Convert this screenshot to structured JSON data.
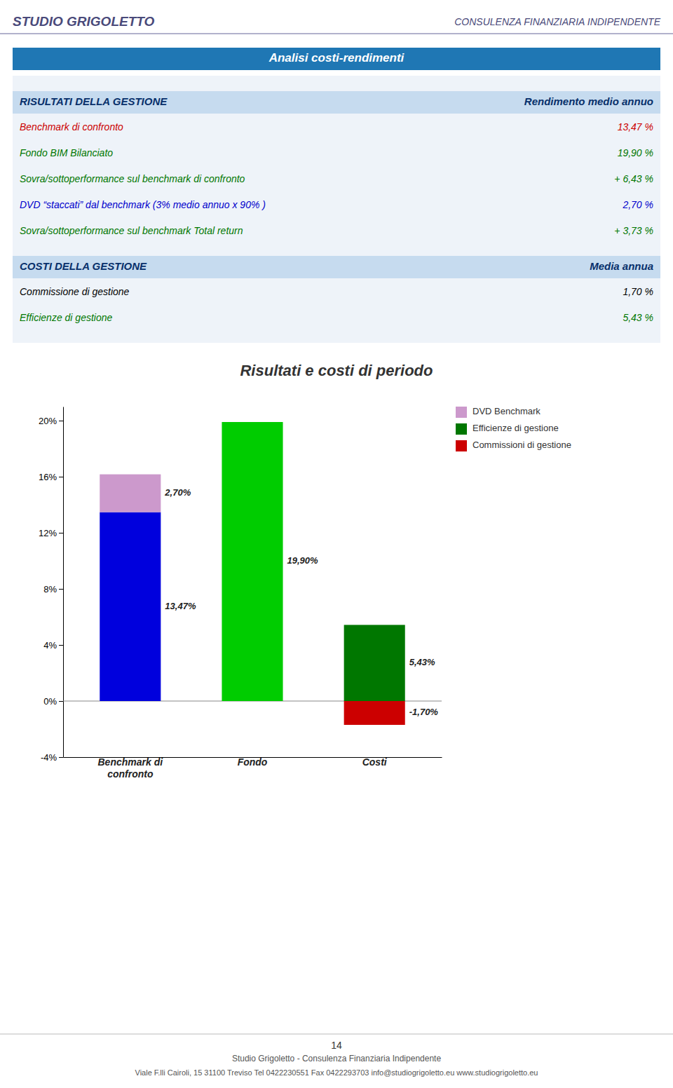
{
  "header": {
    "left": "STUDIO GRIGOLETTO",
    "right": "CONSULENZA FINANZIARIA INDIPENDENTE"
  },
  "banner": "Analisi costi-rendimenti",
  "tables": [
    {
      "header_left": "RISULTATI DELLA GESTIONE",
      "header_right": "Rendimento medio annuo",
      "rows": [
        {
          "label": "Benchmark di confronto",
          "value": "13,47 %",
          "color": "#cc0000"
        },
        {
          "label": "Fondo BIM Bilanciato",
          "value": "19,90 %",
          "color": "#007700"
        },
        {
          "label": "Sovra/sottoperformance sul benchmark di confronto",
          "value": "+ 6,43 %",
          "color": "#007700"
        },
        {
          "label": "DVD “staccati” dal benchmark (3%  medio annuo x 90% )",
          "value": "2,70 %",
          "color": "#0000cc"
        },
        {
          "label": "Sovra/sottoperformance sul benchmark Total return",
          "value": "+ 3,73 %",
          "color": "#007700"
        }
      ]
    },
    {
      "header_left": "COSTI DELLA GESTIONE",
      "header_right": "Media annua",
      "rows": [
        {
          "label": "Commissione di gestione",
          "value": "1,70 %",
          "color": "#000000"
        },
        {
          "label": "Efficienze di gestione",
          "value": "5,43 %",
          "color": "#007700"
        }
      ]
    }
  ],
  "chart_data": {
    "type": "bar",
    "title": "Risultati e costi di periodo",
    "categories": [
      "Benchmark di\nconfronto",
      "Fondo",
      "Costi"
    ],
    "stacked": true,
    "data_labels": true,
    "grid": false,
    "legend": "upper right",
    "series": [
      {
        "color": "#0000dd",
        "values": [
          13.47,
          null,
          null
        ],
        "value_labels": [
          "13,47%",
          null,
          null
        ]
      },
      {
        "name": "DVD Benchmark",
        "color": "#cc99cc",
        "values": [
          2.7,
          null,
          null
        ],
        "value_labels": [
          "2,70%",
          null,
          null
        ]
      },
      {
        "color": "#00cc00",
        "values": [
          null,
          19.9,
          null
        ],
        "value_labels": [
          null,
          "19,90%",
          null
        ]
      },
      {
        "name": "Efficienze di gestione",
        "color": "#007700",
        "values": [
          null,
          null,
          5.43
        ],
        "value_labels": [
          null,
          null,
          "5,43%"
        ]
      },
      {
        "name": "Commissioni di gestione",
        "color": "#cc0000",
        "values": [
          null,
          null,
          -1.7
        ],
        "value_labels": [
          null,
          null,
          "-1,70%"
        ]
      }
    ],
    "ylim": [
      -4,
      21
    ],
    "yticks": [
      {
        "value": -4,
        "label": "-4%"
      },
      {
        "value": 0,
        "label": "0%"
      },
      {
        "value": 4,
        "label": "4%"
      },
      {
        "value": 8,
        "label": "8%"
      },
      {
        "value": 12,
        "label": "12%"
      },
      {
        "value": 16,
        "label": "16%"
      },
      {
        "value": 20,
        "label": "20%"
      }
    ]
  },
  "footer": {
    "page": "14",
    "line1": "Studio Grigoletto - Consulenza Finanziaria Indipendente",
    "line2": "Viale F.lli Cairoli, 15 31100 Treviso Tel 0422230551 Fax 0422293703  info@studiogrigoletto.eu  www.studiogrigoletto.eu"
  }
}
